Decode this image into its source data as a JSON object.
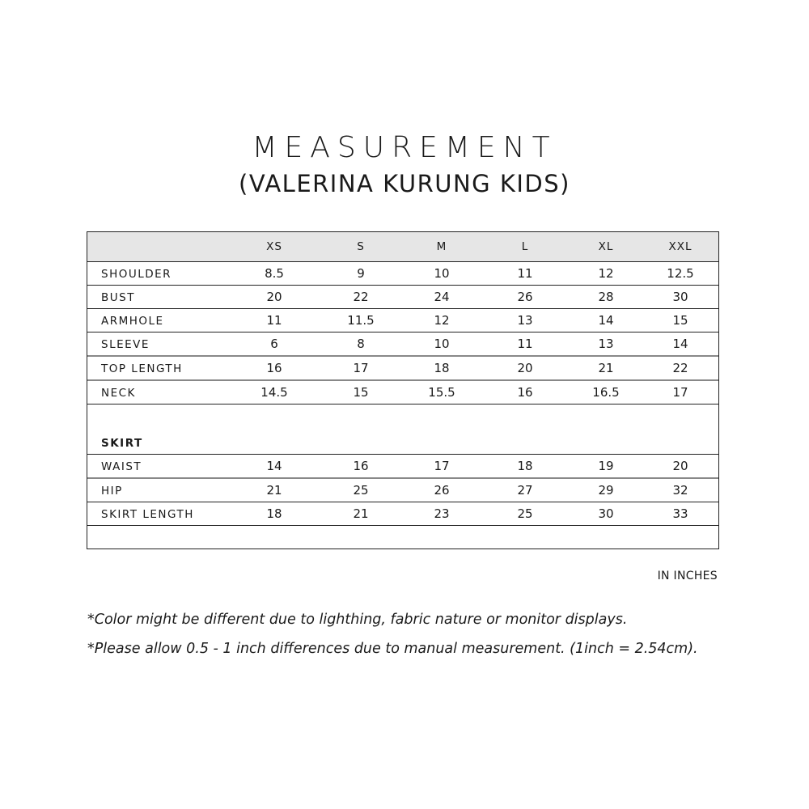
{
  "title": "MEASUREMENT",
  "subtitle": "(VALERINA KURUNG KIDS)",
  "sizes": [
    "XS",
    "S",
    "M",
    "L",
    "XL",
    "XXL"
  ],
  "top_rows": [
    {
      "label": "SHOULDER",
      "values": [
        "8.5",
        "9",
        "10",
        "11",
        "12",
        "12.5"
      ]
    },
    {
      "label": "BUST",
      "values": [
        "20",
        "22",
        "24",
        "26",
        "28",
        "30"
      ]
    },
    {
      "label": "ARMHOLE",
      "values": [
        "11",
        "11.5",
        "12",
        "13",
        "14",
        "15"
      ]
    },
    {
      "label": "SLEEVE",
      "values": [
        "6",
        "8",
        "10",
        "11",
        "13",
        "14"
      ]
    },
    {
      "label": "TOP LENGTH",
      "values": [
        "16",
        "17",
        "18",
        "20",
        "21",
        "22"
      ]
    },
    {
      "label": "NECK",
      "values": [
        "14.5",
        "15",
        "15.5",
        "16",
        "16.5",
        "17"
      ]
    }
  ],
  "skirt_heading": "SKIRT",
  "skirt_rows": [
    {
      "label": "WAIST",
      "values": [
        "14",
        "16",
        "17",
        "18",
        "19",
        "20"
      ]
    },
    {
      "label": "HIP",
      "values": [
        "21",
        "25",
        "26",
        "27",
        "29",
        "32"
      ]
    },
    {
      "label": "SKIRT LENGTH",
      "values": [
        "18",
        "21",
        "23",
        "25",
        "30",
        "33"
      ]
    }
  ],
  "unit": "IN INCHES",
  "notes": [
    "*Color might be different due to lighthing, fabric nature or monitor displays.",
    "*Please allow 0.5 - 1 inch differences due to manual measurement. (1inch = 2.54cm)."
  ],
  "colors": {
    "header_bg": "#e6e6e6",
    "border": "#222222"
  }
}
